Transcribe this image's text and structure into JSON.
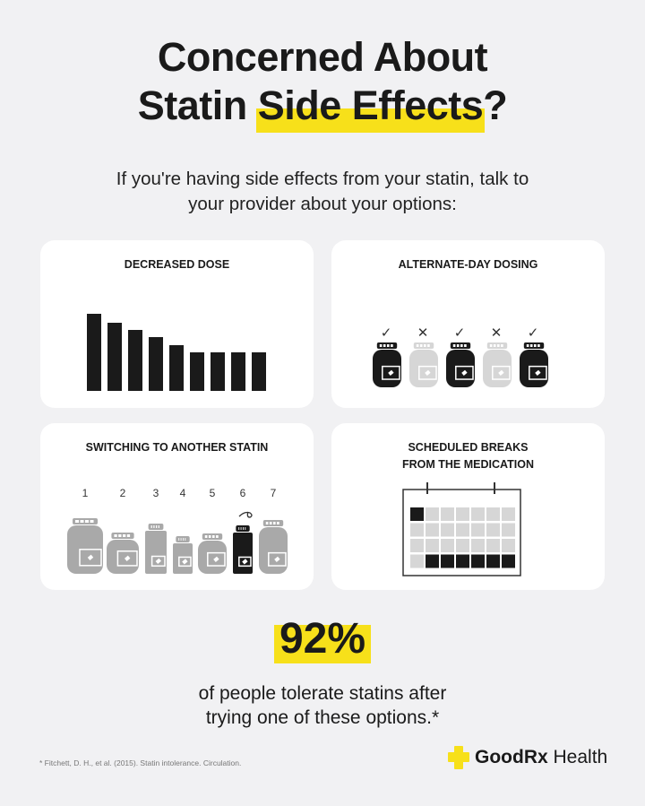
{
  "header": {
    "title_line1": "Concerned About",
    "title_line2_pre": "Statin ",
    "title_line2_highlight": "Side Effects",
    "title_line2_post": "?",
    "subtitle_line1": "If you're having side effects from your statin, talk to",
    "subtitle_line2": "your provider about your options:"
  },
  "cards": [
    {
      "title": "DECREASED DOSE"
    },
    {
      "title": "ALTERNATE-DAY DOSING",
      "marks": [
        "✓",
        "✕",
        "✓",
        "✕",
        "✓"
      ]
    },
    {
      "title": "SWITCHING TO ANOTHER STATIN",
      "numbers": [
        "1",
        "2",
        "3",
        "4",
        "5",
        "6",
        "7"
      ]
    },
    {
      "title_line1": "SCHEDULED BREAKS",
      "title_line2": "FROM THE MEDICATION"
    }
  ],
  "stat": {
    "value": "92%",
    "line1": "of people tolerate statins after",
    "line2": "trying one of these options.*"
  },
  "footer": {
    "citation": "* Fitchett, D. H., et al. (2015). Statin intolerance. Circulation.",
    "brand_bold": "GoodRx",
    "brand_light": " Health"
  },
  "colors": {
    "accent": "#f7e01a",
    "background": "#f1f1f3",
    "dark": "#1a1a1a",
    "grey": "#a9a9a9",
    "light_grey": "#d6d6d6"
  }
}
